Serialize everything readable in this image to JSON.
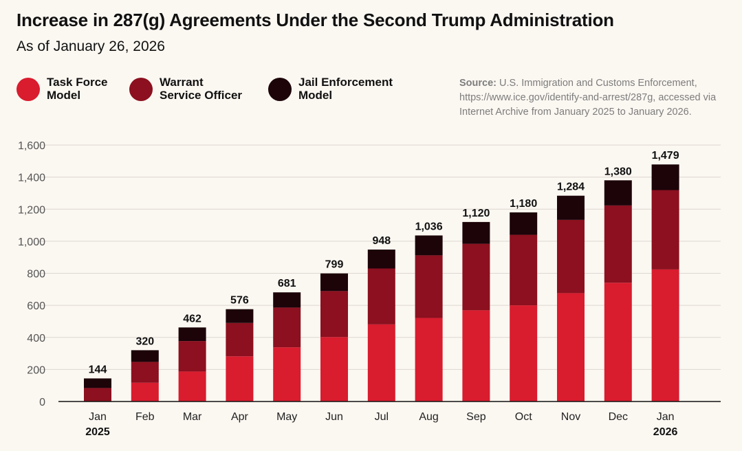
{
  "header": {
    "title": "Increase in 287(g) Agreements Under the Second Trump Administration",
    "subtitle": "As of January 26, 2026"
  },
  "legend": [
    {
      "label": "Task Force\nModel",
      "color": "#d91c2e"
    },
    {
      "label": "Warrant\nService Officer",
      "color": "#8c101f"
    },
    {
      "label": "Jail Enforcement\nModel",
      "color": "#1c0409"
    }
  ],
  "source": {
    "head": "Source:",
    "text": " U.S. Immigration and Customs Enforcement, https://www.ice.gov/identify-and-arrest/287g, accessed via Internet Archive from January 2025 to January 2026."
  },
  "chart_data": {
    "type": "bar",
    "stacked": true,
    "title": "Increase in 287(g) Agreements Under the Second Trump Administration",
    "categories": [
      "Jan",
      "Feb",
      "Mar",
      "Apr",
      "May",
      "Jun",
      "Jul",
      "Aug",
      "Sep",
      "Oct",
      "Nov",
      "Dec",
      "Jan"
    ],
    "category_years": [
      "2025",
      "",
      "",
      "",
      "",
      "",
      "",
      "",
      "",
      "",
      "",
      "",
      "2026"
    ],
    "series": [
      {
        "name": "Task Force Model",
        "color": "#d91c2e",
        "values": [
          2,
          117,
          187,
          282,
          338,
          402,
          481,
          521,
          569,
          600,
          676,
          741,
          824
        ]
      },
      {
        "name": "Warrant Service Officer",
        "color": "#8c101f",
        "values": [
          82,
          130,
          190,
          208,
          248,
          287,
          349,
          391,
          415,
          440,
          457,
          482,
          495
        ]
      },
      {
        "name": "Jail Enforcement Model",
        "color": "#1c0409",
        "values": [
          60,
          73,
          85,
          86,
          95,
          110,
          118,
          124,
          136,
          140,
          151,
          157,
          160
        ]
      }
    ],
    "totals": [
      "144",
      "320",
      "462",
      "576",
      "681",
      "799",
      "948",
      "1,036",
      "1,120",
      "1,180",
      "1,284",
      "1,380",
      "1,479"
    ],
    "ylim": [
      0,
      1600
    ],
    "yticks": [
      0,
      200,
      400,
      600,
      800,
      1000,
      1200,
      1400,
      1600
    ],
    "ytick_labels": [
      "0",
      "200",
      "400",
      "600",
      "800",
      "1,000",
      "1,200",
      "1,400",
      "1,600"
    ],
    "grid": true,
    "xlabel": "",
    "ylabel": ""
  }
}
